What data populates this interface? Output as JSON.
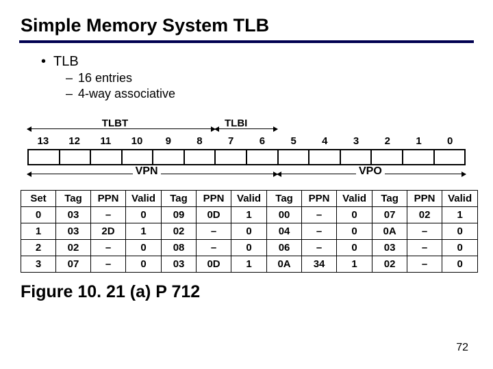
{
  "title": "Simple Memory System TLB",
  "bullet_main": "TLB",
  "bullet_sub1": "16 entries",
  "bullet_sub2": "4-way associative",
  "bit_numbers": [
    "13",
    "12",
    "11",
    "10",
    "9",
    "8",
    "7",
    "6",
    "5",
    "4",
    "3",
    "2",
    "1",
    "0"
  ],
  "label_tlbt": "TLBT",
  "label_tlbi": "TLBI",
  "label_vpn": "VPN",
  "label_vpo": "VPO",
  "columns": [
    "Set",
    "Tag",
    "PPN",
    "Valid",
    "Tag",
    "PPN",
    "Valid",
    "Tag",
    "PPN",
    "Valid",
    "Tag",
    "PPN",
    "Valid"
  ],
  "rows": [
    [
      "0",
      "03",
      "–",
      "0",
      "09",
      "0D",
      "1",
      "00",
      "–",
      "0",
      "07",
      "02",
      "1"
    ],
    [
      "1",
      "03",
      "2D",
      "1",
      "02",
      "–",
      "0",
      "04",
      "–",
      "0",
      "0A",
      "–",
      "0"
    ],
    [
      "2",
      "02",
      "–",
      "0",
      "08",
      "–",
      "0",
      "06",
      "–",
      "0",
      "03",
      "–",
      "0"
    ],
    [
      "3",
      "07",
      "–",
      "0",
      "03",
      "0D",
      "1",
      "0A",
      "34",
      "1",
      "02",
      "–",
      "0"
    ]
  ],
  "figure_caption": "Figure 10. 21 (a)  P 712",
  "page_number": "72",
  "colors": {
    "rule": "#000050",
    "text": "#000000",
    "bg": "#ffffff"
  }
}
